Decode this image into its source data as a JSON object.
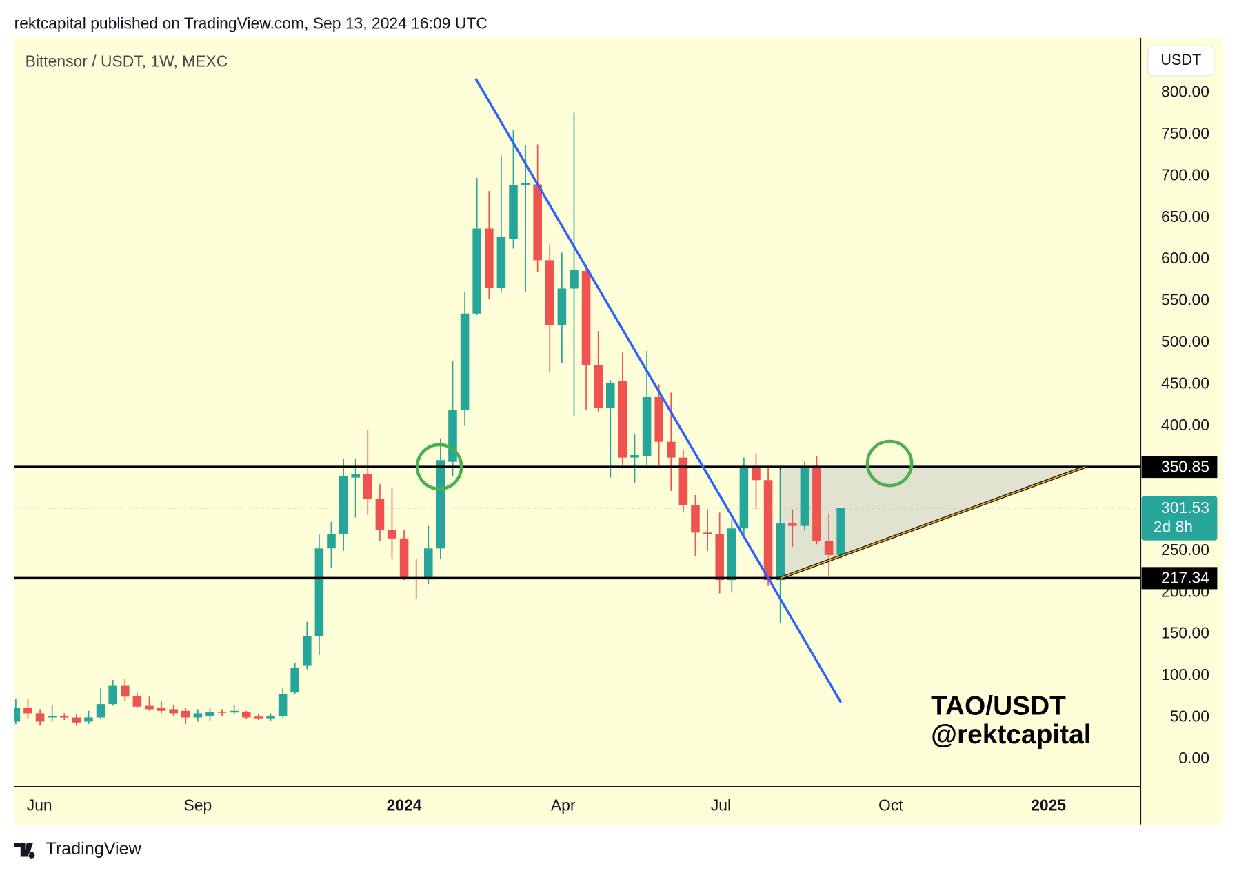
{
  "header": {
    "published": "rektcapital published on TradingView.com, Sep 13, 2024 16:09 UTC"
  },
  "footer": {
    "brand": "TradingView"
  },
  "chart_data": {
    "type": "candlestick",
    "title": "Bittensor / USDT, 1W, MEXC",
    "currency": "USDT",
    "annotations": [
      "TAO/USDT",
      "@rektcapital"
    ],
    "up_color": "#26a69a",
    "down_color": "#ef5350",
    "open": [
      45,
      62,
      55,
      50,
      52,
      50,
      45,
      50,
      66,
      88,
      76,
      64,
      62,
      60,
      58,
      50,
      52,
      57,
      56,
      57,
      51,
      49,
      52,
      80,
      112,
      148,
      253,
      270,
      338,
      342,
      312,
      275,
      265,
      218,
      217,
      253,
      357,
      419,
      535,
      637,
      566,
      625,
      689,
      690,
      599,
      521,
      565,
      586,
      473,
      422,
      454,
      362,
      364,
      435,
      381,
      362,
      305,
      272,
      270,
      215,
      277,
      350,
      335,
      215,
      283,
      280,
      350,
      262,
      245
    ],
    "high": [
      72,
      72,
      60,
      65,
      55,
      54,
      58,
      86,
      95,
      96,
      80,
      75,
      70,
      65,
      62,
      60,
      62,
      60,
      65,
      58,
      54,
      55,
      85,
      115,
      165,
      270,
      285,
      360,
      360,
      395,
      330,
      325,
      275,
      240,
      280,
      385,
      478,
      561,
      698,
      682,
      725,
      755,
      737,
      738,
      618,
      608,
      776,
      594,
      514,
      455,
      488,
      390,
      490,
      450,
      440,
      372,
      317,
      300,
      296,
      287,
      362,
      367,
      352,
      348,
      300,
      357,
      364,
      295,
      301.53
    ],
    "low": [
      42,
      48,
      40,
      45,
      47,
      40,
      42,
      48,
      64,
      70,
      62,
      58,
      55,
      52,
      42,
      45,
      46,
      52,
      54,
      48,
      47,
      46,
      50,
      78,
      108,
      125,
      230,
      250,
      290,
      293,
      262,
      240,
      215,
      193,
      210,
      240,
      340,
      400,
      533,
      552,
      560,
      613,
      561,
      585,
      464,
      476,
      412,
      419,
      417,
      338,
      353,
      332,
      353,
      353,
      322,
      296,
      244,
      250,
      199,
      200,
      268,
      300,
      208,
      163,
      255,
      275,
      258,
      220,
      240
    ],
    "close": [
      62,
      55,
      45,
      52,
      50,
      44,
      50,
      66,
      88,
      75,
      63,
      60,
      58,
      55,
      50,
      55,
      57,
      56,
      58,
      50,
      49,
      52,
      78,
      110,
      148,
      253,
      270,
      340,
      342,
      312,
      275,
      265,
      218,
      216,
      253,
      359,
      419,
      535,
      637,
      566,
      627,
      689,
      692,
      599,
      521,
      565,
      587,
      473,
      422,
      452,
      362,
      365,
      435,
      381,
      362,
      305,
      272,
      270,
      215,
      277,
      350,
      335,
      215,
      283,
      280,
      350,
      262,
      245,
      301.53
    ],
    "xlim": [
      -0.13,
      92.7
    ],
    "xticks": [
      {
        "value": 1.95,
        "label": "Jun"
      },
      {
        "value": 15.0,
        "label": "Sep"
      },
      {
        "value": 32.0,
        "label": "2024"
      },
      {
        "value": 45.1,
        "label": "Apr"
      },
      {
        "value": 58.1,
        "label": "Jul"
      },
      {
        "value": 72.1,
        "label": "Oct"
      },
      {
        "value": 85.1,
        "label": "2025"
      }
    ],
    "ylim": [
      -33,
      866
    ],
    "yticks": [
      {
        "value": 0,
        "label": "0.00"
      },
      {
        "value": 50,
        "label": "50.00"
      },
      {
        "value": 100,
        "label": "100.00"
      },
      {
        "value": 150,
        "label": "150.00"
      },
      {
        "value": 200,
        "label": "200.00"
      },
      {
        "value": 250,
        "label": "250.00"
      },
      {
        "value": 300,
        "label": "300.00"
      },
      {
        "value": 350,
        "label": "350.00"
      },
      {
        "value": 400,
        "label": "400.00"
      },
      {
        "value": 450,
        "label": "450.00"
      },
      {
        "value": 500,
        "label": "500.00"
      },
      {
        "value": 550,
        "label": "550.00"
      },
      {
        "value": 600,
        "label": "600.00"
      },
      {
        "value": 650,
        "label": "650.00"
      },
      {
        "value": 700,
        "label": "700.00"
      },
      {
        "value": 750,
        "label": "750.00"
      },
      {
        "value": 800,
        "label": "800.00"
      }
    ],
    "levels": [
      350.85,
      217.34
    ],
    "last_price": 301.53,
    "countdown": "2d 8h",
    "trendline": {
      "x": [
        37.9,
        68
      ],
      "y": [
        817,
        68
      ],
      "color": "#2962ff"
    },
    "triangle": {
      "x": [
        63,
        88.1
      ],
      "top": 350.85,
      "bottom": 217.34,
      "color": "#f5a623"
    },
    "circles": {
      "x": [
        34.9,
        72
      ],
      "y": [
        351,
        355
      ],
      "color": "#4caf50"
    }
  }
}
